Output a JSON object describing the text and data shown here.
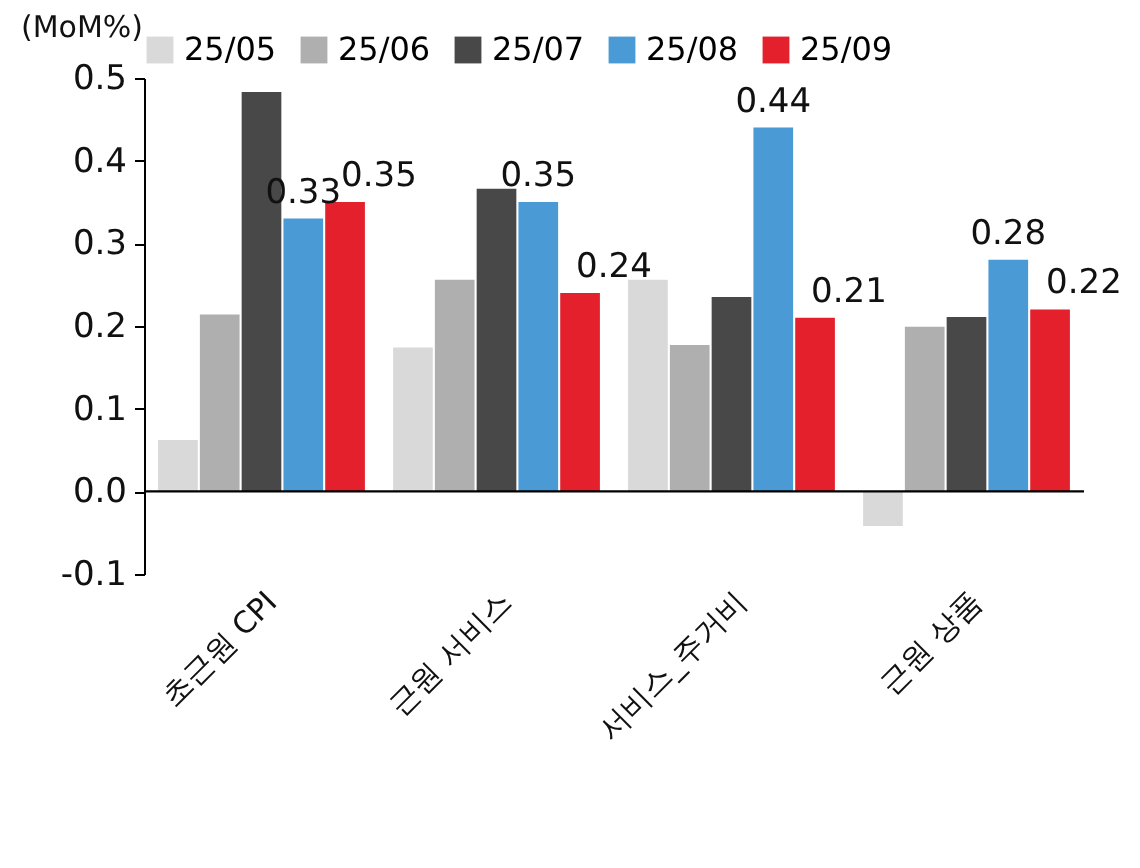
{
  "chart_data": {
    "type": "bar",
    "ylabel": "(MoM%)",
    "categories": [
      "초근원 CPI",
      "근원 서비스",
      "서비스_주거비",
      "근원 상품"
    ],
    "series": [
      {
        "name": "25/05",
        "color": "#d9d9d9",
        "values": [
          0.062,
          0.174,
          0.256,
          -0.042
        ]
      },
      {
        "name": "25/06",
        "color": "#afafaf",
        "values": [
          0.214,
          0.256,
          0.177,
          0.199
        ]
      },
      {
        "name": "25/07",
        "color": "#484848",
        "values": [
          0.483,
          0.366,
          0.235,
          0.211
        ]
      },
      {
        "name": "25/08",
        "color": "#4a9ad6",
        "values": [
          0.33,
          0.35,
          0.44,
          0.28
        ],
        "value_labels": [
          "0.33",
          "0.35",
          "0.44",
          "0.28"
        ]
      },
      {
        "name": "25/09",
        "color": "#e3202c",
        "values": [
          0.35,
          0.24,
          0.21,
          0.22
        ],
        "value_labels": [
          "0.35",
          "0.24",
          "0.21",
          "0.22"
        ]
      }
    ],
    "ylim": [
      -0.1,
      0.5
    ],
    "yticks": [
      {
        "value": -0.1,
        "label": "-0.1"
      },
      {
        "value": 0,
        "label": "0.0"
      },
      0.1,
      0.2,
      0.3,
      0.4,
      0.5
    ],
    "legend": "top"
  }
}
